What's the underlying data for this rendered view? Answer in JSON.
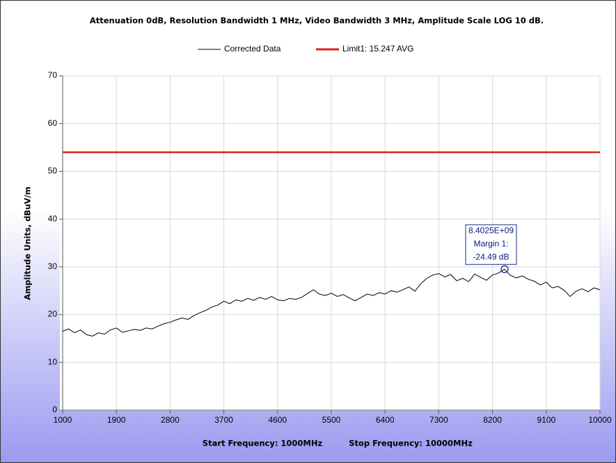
{
  "chart_data": {
    "type": "line",
    "title": "Attenuation 0dB, Resolution Bandwidth 1 MHz, Video Bandwidth 3 MHz, Amplitude Scale LOG 10 dB.",
    "ylabel": "Amplitude Units, dBuV/m",
    "xlabel": [
      "Start Frequency: 1000MHz",
      "Stop Frequency: 10000MHz"
    ],
    "xlim": [
      1000,
      10000
    ],
    "xticks": [
      1000,
      1900,
      2800,
      3700,
      4600,
      5500,
      6400,
      7300,
      8200,
      9100,
      10000
    ],
    "ylim": [
      0,
      70
    ],
    "yticks": [
      0,
      10,
      20,
      30,
      40,
      50,
      60,
      70
    ],
    "grid": true,
    "legend": "top",
    "series": [
      {
        "name": "Corrected Data",
        "color": "#000000",
        "x": [
          1000,
          1100,
          1200,
          1300,
          1400,
          1500,
          1600,
          1700,
          1800,
          1900,
          2000,
          2100,
          2200,
          2300,
          2400,
          2500,
          2600,
          2700,
          2800,
          2900,
          3000,
          3100,
          3200,
          3300,
          3400,
          3500,
          3600,
          3700,
          3800,
          3900,
          4000,
          4100,
          4200,
          4300,
          4400,
          4500,
          4600,
          4700,
          4800,
          4900,
          5000,
          5100,
          5200,
          5300,
          5400,
          5500,
          5600,
          5700,
          5800,
          5900,
          6000,
          6100,
          6200,
          6300,
          6400,
          6500,
          6600,
          6700,
          6800,
          6900,
          7000,
          7100,
          7200,
          7300,
          7400,
          7500,
          7600,
          7700,
          7800,
          7900,
          8000,
          8100,
          8200,
          8300,
          8400,
          8500,
          8600,
          8700,
          8800,
          8900,
          9000,
          9100,
          9200,
          9300,
          9400,
          9500,
          9600,
          9700,
          9800,
          9900,
          10000
        ],
        "values": [
          16.5,
          17,
          16.2,
          16.8,
          15.8,
          15.5,
          16.2,
          15.9,
          16.8,
          17.2,
          16.3,
          16.6,
          16.9,
          16.7,
          17.2,
          17.0,
          17.6,
          18.1,
          18.4,
          18.9,
          19.3,
          19.0,
          19.8,
          20.4,
          20.9,
          21.6,
          22.0,
          22.8,
          22.3,
          23.1,
          22.8,
          23.4,
          23.0,
          23.6,
          23.2,
          23.8,
          23.1,
          22.9,
          23.4,
          23.2,
          23.6,
          24.4,
          25.2,
          24.3,
          24.0,
          24.5,
          23.8,
          24.2,
          23.5,
          22.9,
          23.6,
          24.3,
          24.0,
          24.6,
          24.3,
          25.0,
          24.7,
          25.2,
          25.8,
          24.9,
          26.5,
          27.6,
          28.3,
          28.6,
          27.9,
          28.4,
          27.1,
          27.6,
          26.9,
          28.5,
          27.8,
          27.2,
          28.3,
          28.7,
          29.5,
          28.2,
          27.7,
          28.1,
          27.4,
          27.0,
          26.2,
          26.8,
          25.6,
          25.9,
          25.1,
          23.8,
          24.9,
          25.4,
          24.8,
          25.6,
          25.2
        ]
      },
      {
        "name": "Limit1: 15.247 AVG",
        "color": "#e0201b",
        "x": [
          1000,
          10000
        ],
        "values": [
          54,
          54
        ]
      }
    ],
    "marker": {
      "x": 8402.5,
      "y": 29.5,
      "labels": [
        "8.4025E+09",
        "Margin 1:",
        "-24.49 dB"
      ]
    }
  }
}
